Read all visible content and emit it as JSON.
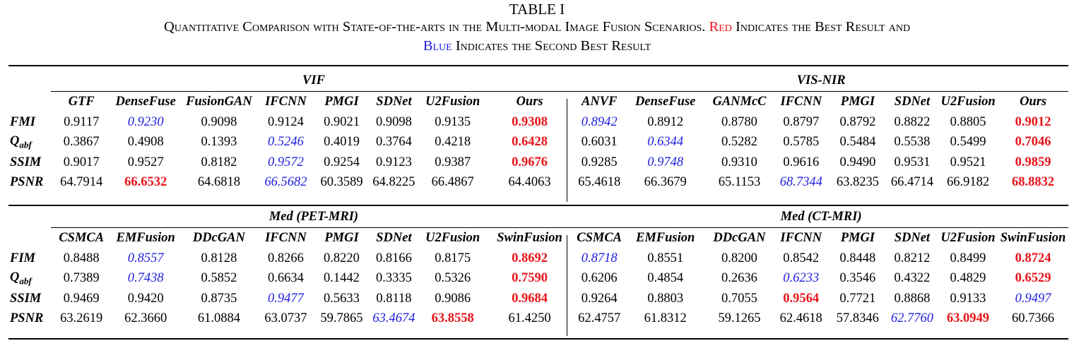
{
  "caption": {
    "title": "TABLE I",
    "line1_a": "Quantitative Comparison with State-of-the-arts in the Multi-modal Image Fusion Scenarios.",
    "line1_red": "Red",
    "line1_b": "Indicates the Best Result and",
    "line2_blue": "Blue",
    "line2_b": "Indicates the Second Best Result"
  },
  "colors": {
    "best": "#e8141a",
    "second": "#1d1ddf"
  },
  "blocks": [
    {
      "groups": [
        {
          "name": "VIF",
          "methods": [
            "GTF",
            "DenseFuse",
            "FusionGAN",
            "IFCNN",
            "PMGI",
            "SDNet",
            "U2Fusion",
            "Ours"
          ],
          "rows": [
            {
              "metric": "FMI",
              "values": [
                "0.9117",
                "0.9230",
                "0.9098",
                "0.9124",
                "0.9021",
                "0.9098",
                "0.9135",
                "0.9308"
              ],
              "best": 7,
              "second": 1
            },
            {
              "metric": "Q",
              "sub": "abf",
              "values": [
                "0.3867",
                "0.4908",
                "0.1393",
                "0.5246",
                "0.4019",
                "0.3764",
                "0.4218",
                "0.6428"
              ],
              "best": 7,
              "second": 3
            },
            {
              "metric": "SSIM",
              "values": [
                "0.9017",
                "0.9527",
                "0.8182",
                "0.9572",
                "0.9254",
                "0.9123",
                "0.9387",
                "0.9676"
              ],
              "best": 7,
              "second": 3
            },
            {
              "metric": "PSNR",
              "values": [
                "64.7914",
                "66.6532",
                "64.6818",
                "66.5682",
                "60.3589",
                "64.8225",
                "66.4867",
                "64.4063"
              ],
              "best": 1,
              "second": 3
            }
          ]
        },
        {
          "name": "VIS-NIR",
          "methods": [
            "ANVF",
            "DenseFuse",
            "GANMcC",
            "IFCNN",
            "PMGI",
            "SDNet",
            "U2Fusion",
            "Ours"
          ],
          "rows": [
            {
              "values": [
                "0.8942",
                "0.8912",
                "0.8780",
                "0.8797",
                "0.8792",
                "0.8822",
                "0.8805",
                "0.9012"
              ],
              "best": 7,
              "second": 0
            },
            {
              "values": [
                "0.6031",
                "0.6344",
                "0.5282",
                "0.5785",
                "0.5484",
                "0.5538",
                "0.5499",
                "0.7046"
              ],
              "best": 7,
              "second": 1
            },
            {
              "values": [
                "0.9285",
                "0.9748",
                "0.9310",
                "0.9616",
                "0.9490",
                "0.9531",
                "0.9521",
                "0.9859"
              ],
              "best": 7,
              "second": 1
            },
            {
              "values": [
                "65.4618",
                "66.3679",
                "65.1153",
                "68.7344",
                "63.8235",
                "66.4714",
                "66.9182",
                "68.8832"
              ],
              "best": 7,
              "second": 3
            }
          ]
        }
      ]
    },
    {
      "groups": [
        {
          "name": "Med (PET-MRI)",
          "methods": [
            "CSMCA",
            "EMFusion",
            "DDcGAN",
            "IFCNN",
            "PMGI",
            "SDNet",
            "U2Fusion",
            "SwinFusion"
          ],
          "rows": [
            {
              "metric": "FIM",
              "values": [
                "0.8488",
                "0.8557",
                "0.8128",
                "0.8266",
                "0.8220",
                "0.8166",
                "0.8175",
                "0.8692"
              ],
              "best": 7,
              "second": 1
            },
            {
              "metric": "Q",
              "sub": "abf",
              "values": [
                "0.7389",
                "0.7438",
                "0.5852",
                "0.6634",
                "0.1442",
                "0.3335",
                "0.5326",
                "0.7590"
              ],
              "best": 7,
              "second": 1
            },
            {
              "metric": "SSIM",
              "values": [
                "0.9469",
                "0.9420",
                "0.8735",
                "0.9477",
                "0.5633",
                "0.8118",
                "0.9086",
                "0.9684"
              ],
              "best": 7,
              "second": 3
            },
            {
              "metric": "PSNR",
              "values": [
                "63.2619",
                "62.3660",
                "61.0884",
                "63.0737",
                "59.7865",
                "63.4674",
                "63.8558",
                "61.4250"
              ],
              "best": 6,
              "second": 5
            }
          ]
        },
        {
          "name": "Med (CT-MRI)",
          "methods": [
            "CSMCA",
            "EMFusion",
            "DDcGAN",
            "IFCNN",
            "PMGI",
            "SDNet",
            "U2Fusion",
            "SwinFusion"
          ],
          "rows": [
            {
              "values": [
                "0.8718",
                "0.8551",
                "0.8200",
                "0.8542",
                "0.8448",
                "0.8212",
                "0.8499",
                "0.8724"
              ],
              "best": 7,
              "second": 0
            },
            {
              "values": [
                "0.6206",
                "0.4854",
                "0.2636",
                "0.6233",
                "0.3546",
                "0.4322",
                "0.4829",
                "0.6529"
              ],
              "best": 7,
              "second": 3
            },
            {
              "values": [
                "0.9264",
                "0.8803",
                "0.7055",
                "0.9564",
                "0.7721",
                "0.8868",
                "0.9133",
                "0.9497"
              ],
              "best": 3,
              "second": 7
            },
            {
              "values": [
                "62.4757",
                "61.8312",
                "59.1265",
                "62.4618",
                "57.8346",
                "62.7760",
                "63.0949",
                "60.7366"
              ],
              "best": 6,
              "second": 5
            }
          ]
        }
      ]
    }
  ]
}
